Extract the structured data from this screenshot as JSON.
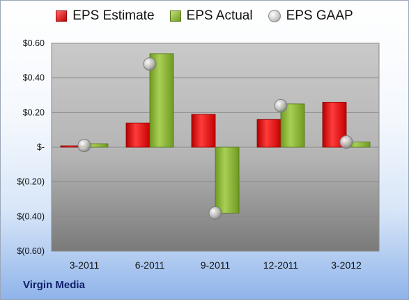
{
  "chart_data": {
    "type": "bar",
    "title": "",
    "xlabel": "",
    "ylabel": "",
    "categories": [
      "3-2011",
      "6-2011",
      "9-2011",
      "12-2011",
      "3-2012"
    ],
    "series": [
      {
        "name": "EPS Estimate",
        "kind": "bar",
        "color": "#d41414",
        "values": [
          0.0,
          0.14,
          0.19,
          0.16,
          0.26
        ]
      },
      {
        "name": "EPS Actual",
        "kind": "bar",
        "color": "#8bb33a",
        "values": [
          0.02,
          0.54,
          -0.38,
          0.25,
          0.03
        ]
      },
      {
        "name": "EPS GAAP",
        "kind": "marker",
        "color": "#bdbdbd",
        "values": [
          0.01,
          0.48,
          -0.38,
          0.24,
          0.03
        ]
      }
    ],
    "ylim": [
      -0.6,
      0.6
    ],
    "yticks": [
      0.6,
      0.4,
      0.2,
      0.0,
      -0.2,
      -0.4,
      -0.6
    ],
    "ytick_labels": [
      "$0.60",
      "$0.40",
      "$0.20",
      "$-",
      "$(0.20)",
      "$(0.40)",
      "$(0.60)"
    ],
    "grid": true,
    "legend_position": "top"
  },
  "legend": {
    "estimate": "EPS Estimate",
    "actual": "EPS Actual",
    "gaap": "EPS GAAP"
  },
  "company_name": "Virgin Media"
}
